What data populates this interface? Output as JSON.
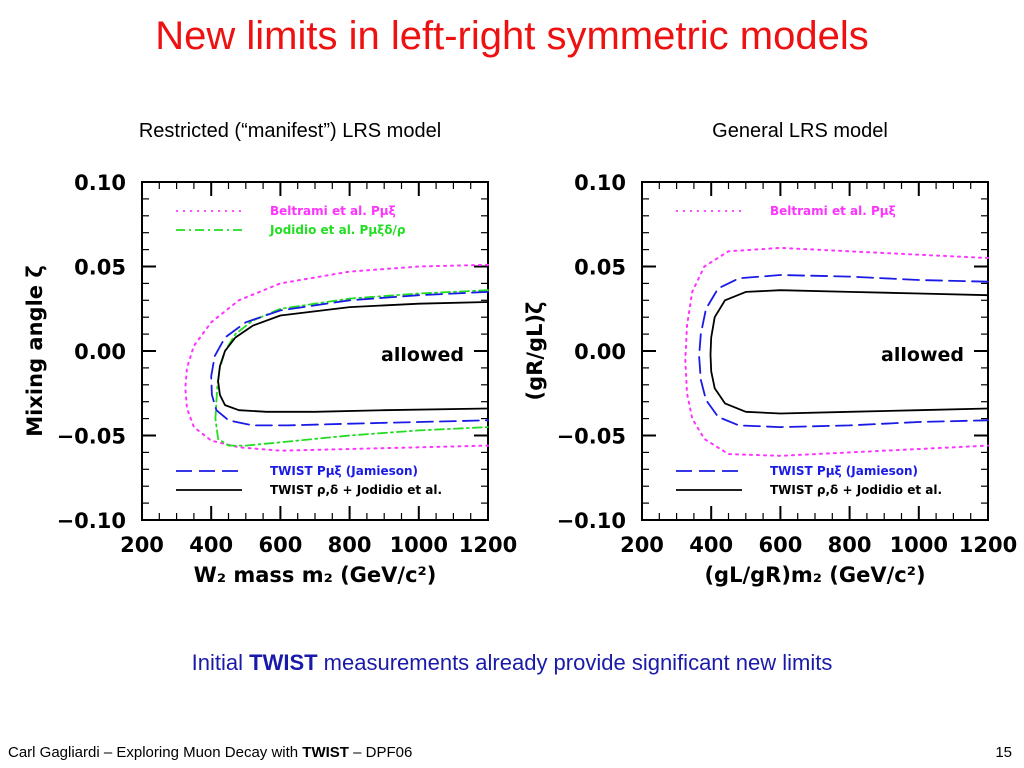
{
  "slide": {
    "title": "New limits in left-right symmetric models",
    "subtitle_left": "Restricted (“manifest”) LRS model",
    "subtitle_right": "General LRS model",
    "conclusion_pre": "Initial ",
    "conclusion_bold": "TWIST",
    "conclusion_post": " measurements already provide significant new limits",
    "footer_pre": "Carl Gagliardi – Exploring Muon Decay with ",
    "footer_bold": "TWIST",
    "footer_post": " – DPF06",
    "page_number": "15"
  },
  "colors": {
    "title": "#ee1111",
    "conclusion": "#1a1aaa",
    "magenta": "#ff33ff",
    "green": "#22dd22",
    "blue": "#1a1ae6",
    "black": "#000000"
  },
  "chart_data": [
    {
      "type": "line",
      "xlabel": "W₂ mass m₂ (GeV/c²)",
      "ylabel": "Mixing angle ζ",
      "xlim": [
        200,
        1200
      ],
      "ylim": [
        -0.1,
        0.1
      ],
      "xticks": [
        "200",
        "400",
        "600",
        "800",
        "1000",
        "1200"
      ],
      "yticks": [
        "0.10",
        "0.05",
        "0.00",
        "−0.05",
        "−0.10"
      ],
      "annotation": "allowed",
      "legend_top": [
        {
          "label": "Beltrami et al. Pμξ",
          "style": "dotted",
          "color": "#ff33ff"
        },
        {
          "label": "Jodidio et al. Pμξδ/ρ",
          "style": "dash-dot",
          "color": "#22dd22"
        }
      ],
      "legend_bottom": [
        {
          "label": "TWIST Pμξ (Jamieson)",
          "style": "dashed",
          "color": "#1a1ae6"
        },
        {
          "label": "TWIST ρ,δ + Jodidio et al.",
          "style": "solid",
          "color": "#000000"
        }
      ],
      "series": [
        {
          "name": "Beltrami et al. Pμξ",
          "style": "dotted",
          "color": "#ff33ff",
          "x": [
            1200,
            1000,
            800,
            600,
            480,
            400,
            350,
            330,
            325,
            330,
            350,
            400,
            480,
            600,
            800,
            1000,
            1200
          ],
          "y": [
            0.051,
            0.05,
            0.047,
            0.04,
            0.03,
            0.017,
            0.003,
            -0.01,
            -0.022,
            -0.034,
            -0.045,
            -0.053,
            -0.057,
            -0.059,
            -0.058,
            -0.057,
            -0.056
          ]
        },
        {
          "name": "Jodidio et al. Pμξδ/ρ",
          "style": "dash-dot",
          "color": "#22dd22",
          "x": [
            1200,
            1000,
            800,
            600,
            520,
            470,
            440,
            425,
            418,
            415,
            412,
            420,
            450,
            500,
            600,
            800,
            1000,
            1200
          ],
          "y": [
            0.036,
            0.034,
            0.031,
            0.025,
            0.018,
            0.01,
            0.0,
            -0.01,
            -0.02,
            -0.03,
            -0.04,
            -0.052,
            -0.056,
            -0.056,
            -0.054,
            -0.05,
            -0.047,
            -0.045
          ]
        },
        {
          "name": "TWIST Pμξ (Jamieson)",
          "style": "dashed",
          "color": "#1a1ae6",
          "x": [
            1200,
            1000,
            800,
            600,
            500,
            440,
            410,
            400,
            402,
            415,
            450,
            520,
            620,
            800,
            1000,
            1200
          ],
          "y": [
            0.035,
            0.033,
            0.03,
            0.024,
            0.017,
            0.008,
            -0.003,
            -0.015,
            -0.026,
            -0.035,
            -0.041,
            -0.044,
            -0.044,
            -0.043,
            -0.042,
            -0.041
          ]
        },
        {
          "name": "TWIST ρ,δ + Jodidio et al.",
          "style": "solid",
          "color": "#000000",
          "x": [
            1200,
            1000,
            800,
            600,
            520,
            470,
            440,
            425,
            420,
            425,
            440,
            480,
            560,
            700,
            900,
            1200
          ],
          "y": [
            0.029,
            0.028,
            0.026,
            0.021,
            0.015,
            0.008,
            0.0,
            -0.009,
            -0.018,
            -0.026,
            -0.032,
            -0.035,
            -0.036,
            -0.036,
            -0.035,
            -0.034
          ]
        }
      ]
    },
    {
      "type": "line",
      "xlabel": "(gL/gR)m₂ (GeV/c²)",
      "ylabel": "(gR/gL)ζ",
      "xlim": [
        200,
        1200
      ],
      "ylim": [
        -0.1,
        0.1
      ],
      "xticks": [
        "200",
        "400",
        "600",
        "800",
        "1000",
        "1200"
      ],
      "yticks": [
        "0.10",
        "0.05",
        "0.00",
        "−0.05",
        "−0.10"
      ],
      "annotation": "allowed",
      "legend_top": [
        {
          "label": "Beltrami et al. Pμξ",
          "style": "dotted",
          "color": "#ff33ff"
        }
      ],
      "legend_bottom": [
        {
          "label": "TWIST Pμξ (Jamieson)",
          "style": "dashed",
          "color": "#1a1ae6"
        },
        {
          "label": "TWIST ρ,δ + Jodidio et al.",
          "style": "solid",
          "color": "#000000"
        }
      ],
      "series": [
        {
          "name": "Beltrami et al. Pμξ",
          "style": "dotted",
          "color": "#ff33ff",
          "x": [
            1200,
            1000,
            800,
            600,
            450,
            380,
            345,
            330,
            325,
            330,
            345,
            380,
            450,
            600,
            800,
            1000,
            1200
          ],
          "y": [
            0.055,
            0.057,
            0.059,
            0.061,
            0.059,
            0.05,
            0.035,
            0.015,
            -0.005,
            -0.025,
            -0.04,
            -0.052,
            -0.061,
            -0.062,
            -0.06,
            -0.058,
            -0.056
          ]
        },
        {
          "name": "TWIST Pμξ (Jamieson)",
          "style": "dashed",
          "color": "#1a1ae6",
          "x": [
            1200,
            1000,
            800,
            600,
            480,
            420,
            385,
            370,
            365,
            370,
            385,
            420,
            480,
            600,
            800,
            1000,
            1200
          ],
          "y": [
            0.041,
            0.042,
            0.044,
            0.045,
            0.043,
            0.037,
            0.025,
            0.01,
            -0.003,
            -0.017,
            -0.029,
            -0.039,
            -0.044,
            -0.045,
            -0.044,
            -0.042,
            -0.041
          ]
        },
        {
          "name": "TWIST ρ,δ + Jodidio et al.",
          "style": "solid",
          "color": "#000000",
          "x": [
            1200,
            1000,
            800,
            600,
            500,
            440,
            410,
            400,
            398,
            400,
            410,
            440,
            500,
            600,
            800,
            1000,
            1200
          ],
          "y": [
            0.033,
            0.034,
            0.035,
            0.036,
            0.035,
            0.03,
            0.02,
            0.008,
            -0.002,
            -0.012,
            -0.022,
            -0.031,
            -0.036,
            -0.037,
            -0.036,
            -0.035,
            -0.034
          ]
        }
      ]
    }
  ]
}
